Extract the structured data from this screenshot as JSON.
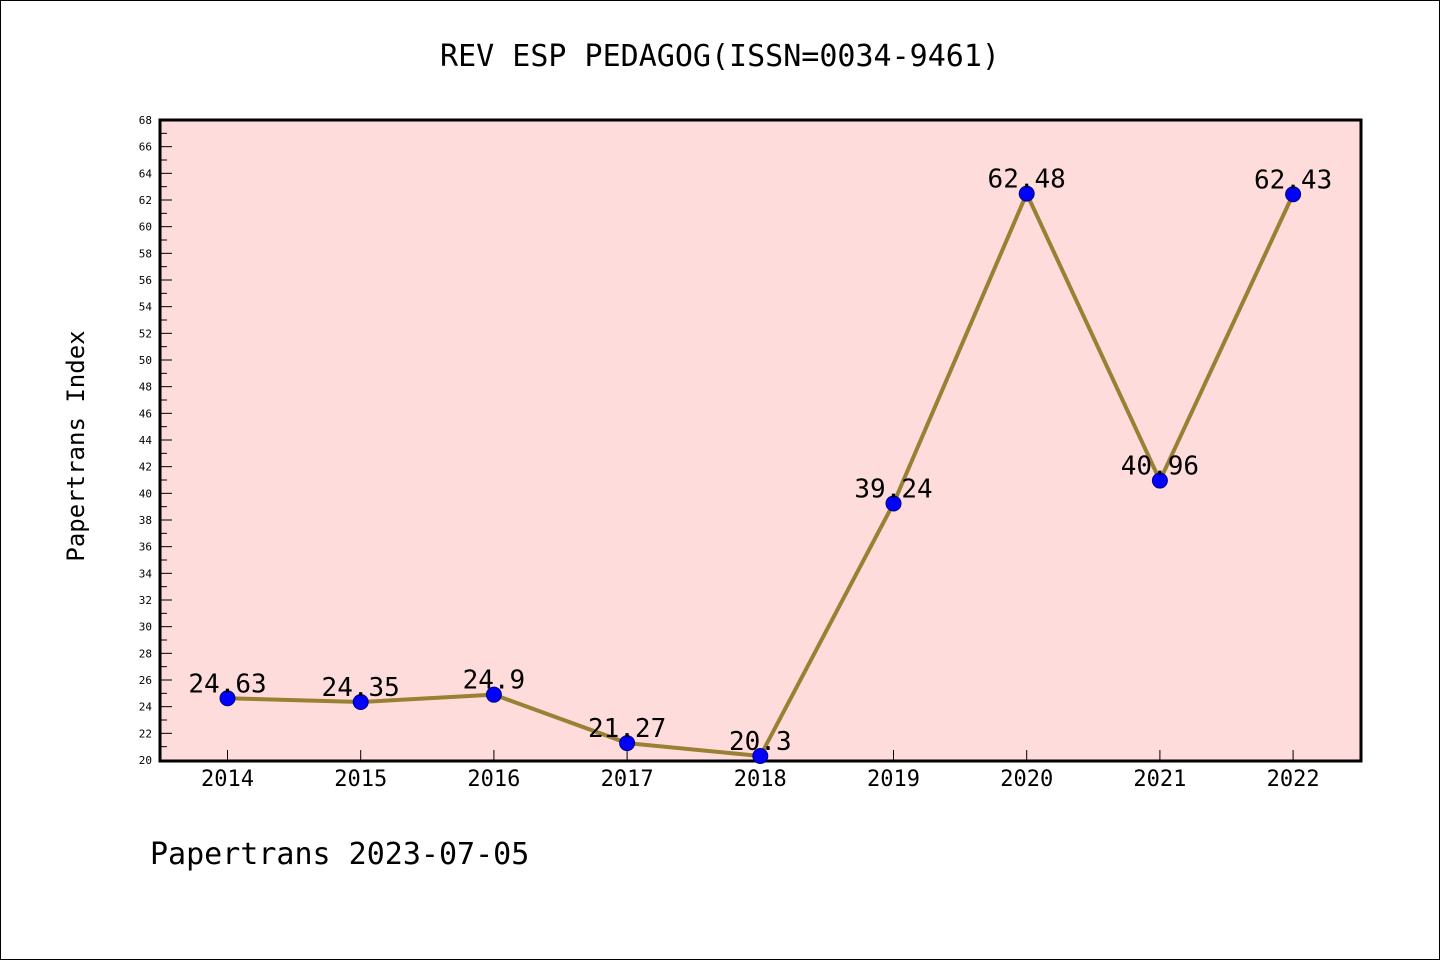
{
  "chart_data": {
    "type": "line",
    "title": "REV ESP PEDAGOG(ISSN=0034-9461)",
    "ylabel": "Papertrans Index",
    "xlabel": "",
    "footer": "Papertrans 2023-07-05",
    "categories": [
      "2014",
      "2015",
      "2016",
      "2017",
      "2018",
      "2019",
      "2020",
      "2021",
      "2022"
    ],
    "series": [
      {
        "values": [
          24.63,
          24.35,
          24.9,
          21.27,
          20.3,
          39.24,
          62.48,
          40.96,
          62.43
        ],
        "labels": [
          "24.63",
          "24.35",
          "24.9",
          "21.27",
          "20.3",
          "39.24",
          "62.48",
          "40.96",
          "62.43"
        ]
      }
    ],
    "ylim": [
      20,
      68
    ],
    "ytick_step": 2,
    "grid": false,
    "colors": {
      "plot_background": "#ffdcdc",
      "line": "#998033",
      "marker_fill": "#0000ff",
      "marker_edge": "#000080",
      "axis": "#000000"
    }
  }
}
